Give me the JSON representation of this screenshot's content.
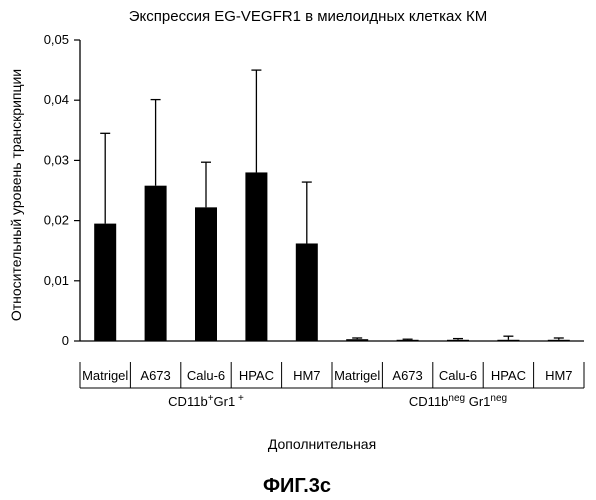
{
  "chart_data": {
    "type": "bar",
    "title": "Экспрессия EG-VEGFR1 в миелоидных клетках КМ",
    "ylabel": "Относительный уровень транскрипции",
    "xlabel": "Дополнительная",
    "figure_label": "ФИГ.3с",
    "ylim": [
      0,
      0.05
    ],
    "yticks": [
      "0",
      "0,01",
      "0,02",
      "0,03",
      "0,04",
      "0,05"
    ],
    "grid": false,
    "bar_color": "#000000",
    "groups": [
      {
        "label_main": "CD11b",
        "label_sup": "+",
        "label_mid": "Gr1",
        "label_sup2": " +",
        "categories": [
          "Matrigel",
          "A673",
          "Calu-6",
          "HPAC",
          "HM7"
        ],
        "values": [
          0.0195,
          0.0258,
          0.0222,
          0.028,
          0.0162
        ],
        "errors": [
          0.015,
          0.0143,
          0.0075,
          0.017,
          0.0102
        ]
      },
      {
        "label_main": "CD11b",
        "label_sup": "neg",
        "label_mid": " Gr1",
        "label_sup2": "neg",
        "categories": [
          "Matrigel",
          "A673",
          "Calu-6",
          "HPAC",
          "HM7"
        ],
        "values": [
          0.0003,
          0.0002,
          0.0002,
          0.0002,
          0.0002
        ],
        "errors": [
          0.0002,
          0.0001,
          0.0002,
          0.0006,
          0.0003
        ]
      }
    ]
  }
}
